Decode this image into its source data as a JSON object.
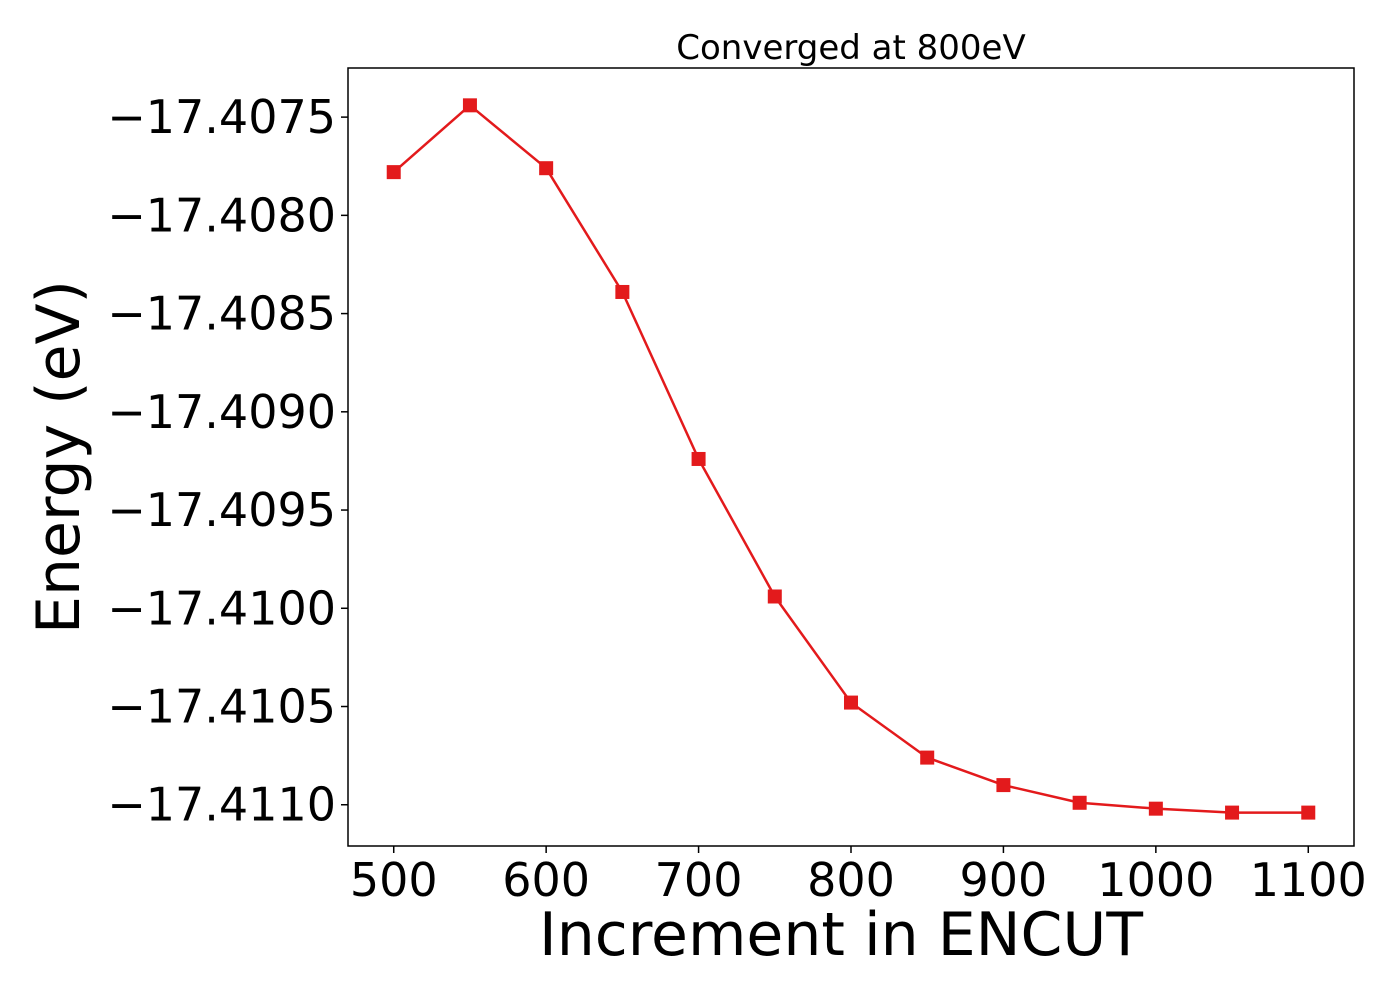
{
  "chart_data": {
    "type": "line",
    "title": "Converged at 800eV",
    "xlabel": "Increment in ENCUT",
    "ylabel": "Energy (eV)",
    "xlim": [
      470,
      1130
    ],
    "ylim": [
      -17.41121,
      -17.40725
    ],
    "xticks": [
      500,
      600,
      700,
      800,
      900,
      1000,
      1100
    ],
    "yticks": [
      -17.4075,
      -17.408,
      -17.4085,
      -17.409,
      -17.4095,
      -17.41,
      -17.4105,
      -17.411
    ],
    "ytick_labels": [
      "−17.4075",
      "−17.4080",
      "−17.4085",
      "−17.4090",
      "−17.4095",
      "−17.4100",
      "−17.4105",
      "−17.4110"
    ],
    "grid": false,
    "series": [
      {
        "color": "#e31a1c",
        "marker": "square",
        "x": [
          500,
          550,
          600,
          650,
          700,
          750,
          800,
          850,
          900,
          950,
          1000,
          1050,
          1100
        ],
        "y": [
          -17.40778,
          -17.40744,
          -17.40776,
          -17.40839,
          -17.40924,
          -17.40994,
          -17.41048,
          -17.41076,
          -17.4109,
          -17.41099,
          -17.41102,
          -17.41104,
          -17.41104
        ]
      }
    ]
  }
}
